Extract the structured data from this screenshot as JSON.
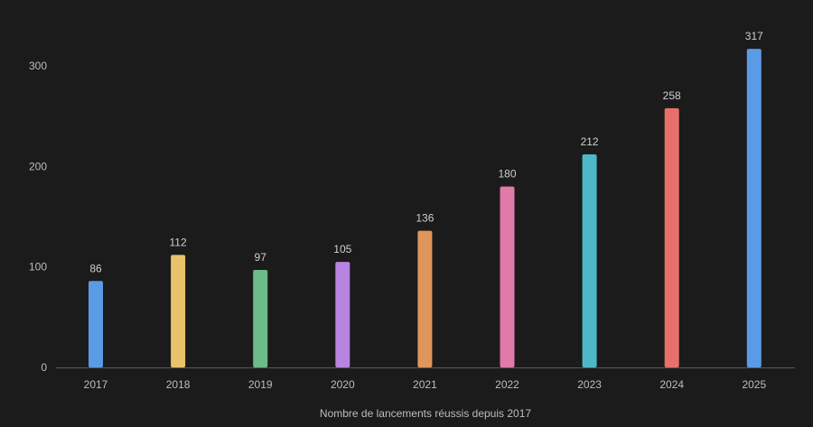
{
  "chart_data": {
    "type": "bar",
    "title": "",
    "xlabel": "Nombre de lancements réussis depuis 2017",
    "ylabel": "",
    "categories": [
      "2017",
      "2018",
      "2019",
      "2020",
      "2021",
      "2022",
      "2023",
      "2024",
      "2025"
    ],
    "values": [
      86,
      112,
      97,
      105,
      136,
      180,
      212,
      258,
      317
    ],
    "data_labels": [
      "86",
      "112",
      "97",
      "105",
      "136",
      "180",
      "212",
      "258",
      "317"
    ],
    "bar_colors": [
      "#5a9be6",
      "#e8c36a",
      "#6dbb8a",
      "#b784e0",
      "#e0955a",
      "#e07aa8",
      "#4fb8c8",
      "#e8706a",
      "#5a9be6"
    ],
    "y_ticks": [
      0,
      100,
      200,
      300
    ],
    "y_tick_labels": [
      "0",
      "100",
      "200",
      "300"
    ],
    "ylim": [
      0,
      330
    ],
    "grid": false,
    "legend": "none"
  },
  "colors": {
    "background": "#1b1b1b",
    "axis_line": "#5a5a5a",
    "text": "#bdbdbd"
  }
}
